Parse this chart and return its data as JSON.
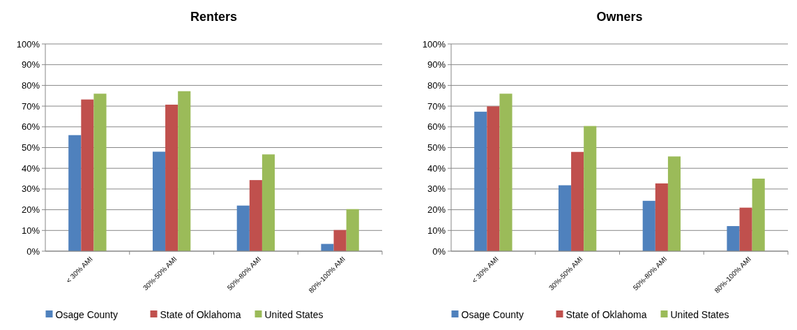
{
  "chart_data": [
    {
      "type": "bar",
      "title": "Renters",
      "categories": [
        "< 30% AMI",
        "30%-50% AMI",
        "50%-80% AMI",
        "80%-100% AMI"
      ],
      "series": [
        {
          "name": "Osage County",
          "color": "#4f81bd",
          "values": [
            56,
            48,
            22,
            3.5
          ]
        },
        {
          "name": "State of Oklahoma",
          "color": "#c0504d",
          "values": [
            73.2,
            70.7,
            34.3,
            10.2
          ]
        },
        {
          "name": "United States",
          "color": "#9bbb59",
          "values": [
            76,
            77.2,
            46.7,
            20.3
          ]
        }
      ],
      "ylim": [
        0,
        100
      ],
      "yticks": [
        {
          "value": 0,
          "label": "0%"
        },
        {
          "value": 10,
          "label": "10%"
        },
        {
          "value": 20,
          "label": "20%"
        },
        {
          "value": 30,
          "label": "30%"
        },
        {
          "value": 40,
          "label": "40%"
        },
        {
          "value": 50,
          "label": "50%"
        },
        {
          "value": 60,
          "label": "60%"
        },
        {
          "value": 70,
          "label": "70%"
        },
        {
          "value": 80,
          "label": "80%"
        },
        {
          "value": 90,
          "label": "90%"
        },
        {
          "value": 100,
          "label": "100%"
        }
      ],
      "grid": "y",
      "legend": "bottom"
    },
    {
      "type": "bar",
      "title": "Owners",
      "categories": [
        "< 30% AMI",
        "30%-50% AMI",
        "50%-80% AMI",
        "80%-100% AMI"
      ],
      "series": [
        {
          "name": "Osage County",
          "color": "#4f81bd",
          "values": [
            67.3,
            31.8,
            24.3,
            12.1
          ]
        },
        {
          "name": "State of Oklahoma",
          "color": "#c0504d",
          "values": [
            69.9,
            47.9,
            32.7,
            21
          ]
        },
        {
          "name": "United States",
          "color": "#9bbb59",
          "values": [
            76,
            60.4,
            45.7,
            35
          ]
        }
      ],
      "ylim": [
        0,
        100
      ],
      "yticks": [
        {
          "value": 0,
          "label": "0%"
        },
        {
          "value": 10,
          "label": "10%"
        },
        {
          "value": 20,
          "label": "20%"
        },
        {
          "value": 30,
          "label": "30%"
        },
        {
          "value": 40,
          "label": "40%"
        },
        {
          "value": 50,
          "label": "50%"
        },
        {
          "value": 60,
          "label": "60%"
        },
        {
          "value": 70,
          "label": "70%"
        },
        {
          "value": 80,
          "label": "80%"
        },
        {
          "value": 90,
          "label": "90%"
        },
        {
          "value": 100,
          "label": "100%"
        }
      ],
      "grid": "y",
      "legend": "bottom"
    }
  ]
}
